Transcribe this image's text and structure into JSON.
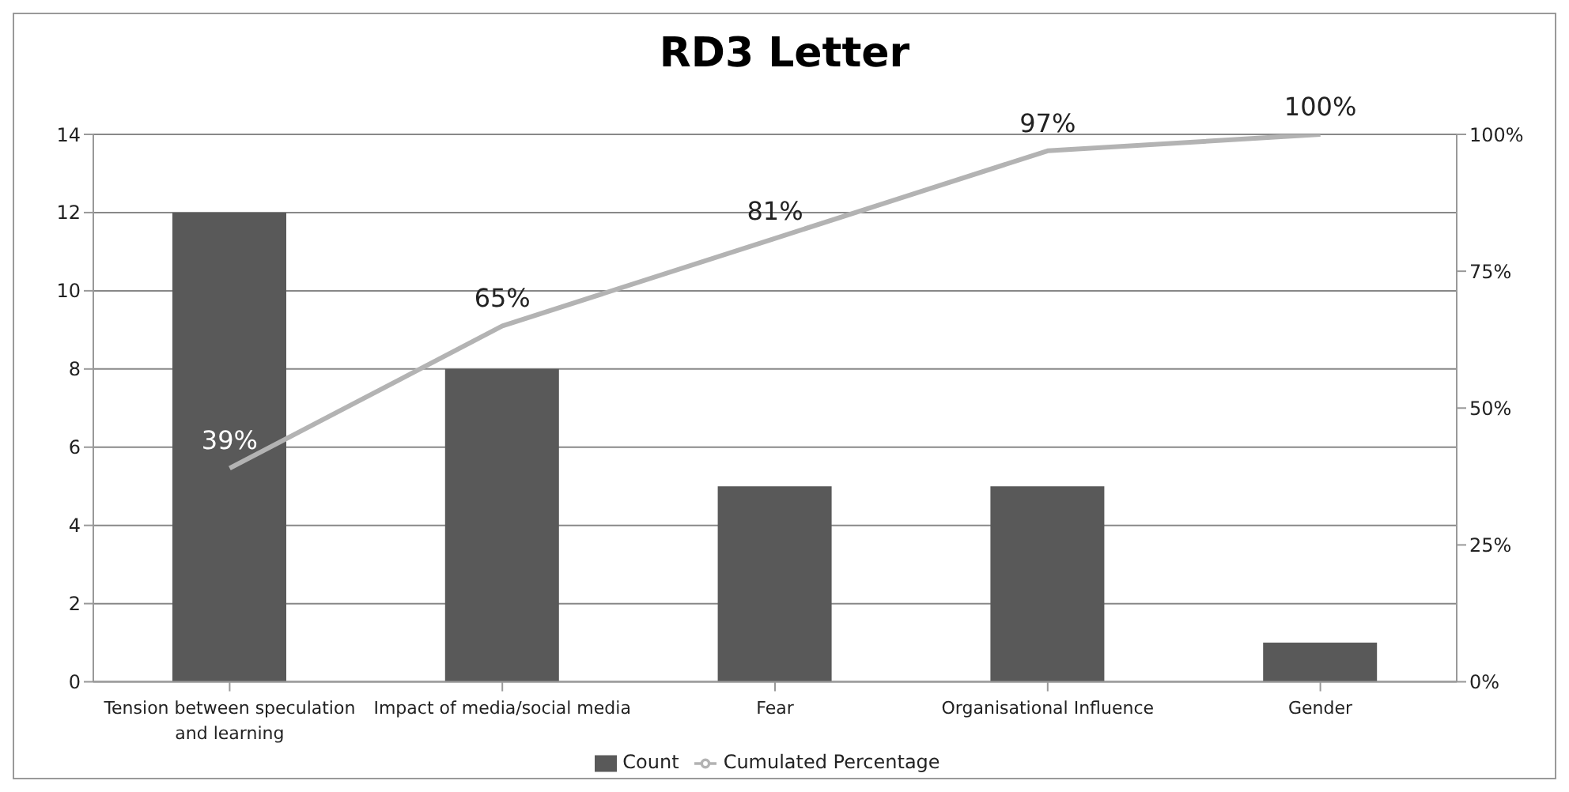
{
  "chart_data": {
    "type": "bar",
    "title": "RD3 Letter",
    "categories": [
      "Tension between speculation and learning",
      "Impact of media/social media",
      "Fear",
      "Organisational Influence",
      "Gender"
    ],
    "series": [
      {
        "name": "Count",
        "color": "#595959",
        "values": [
          12,
          8,
          5,
          5,
          1
        ]
      },
      {
        "name": "Cumulated Percentage",
        "type": "line",
        "axis": "y2",
        "color": "#b3b3b3",
        "values": [
          39,
          65,
          81,
          97,
          100
        ],
        "value_labels": [
          "39%",
          "65%",
          "81%",
          "97%",
          "100%"
        ]
      }
    ],
    "ylim": [
      0,
      14
    ],
    "yticks": [
      0,
      2,
      4,
      6,
      8,
      10,
      12,
      14
    ],
    "y2lim": [
      0,
      100
    ],
    "y2ticks": [
      {
        "value": 0,
        "label": "0%"
      },
      {
        "value": 25,
        "label": "25%"
      },
      {
        "value": 50,
        "label": "50%"
      },
      {
        "value": 75,
        "label": "75%"
      },
      {
        "value": 100,
        "label": "100%"
      }
    ],
    "grid": "y",
    "legend": "bottom",
    "marker": "none"
  }
}
